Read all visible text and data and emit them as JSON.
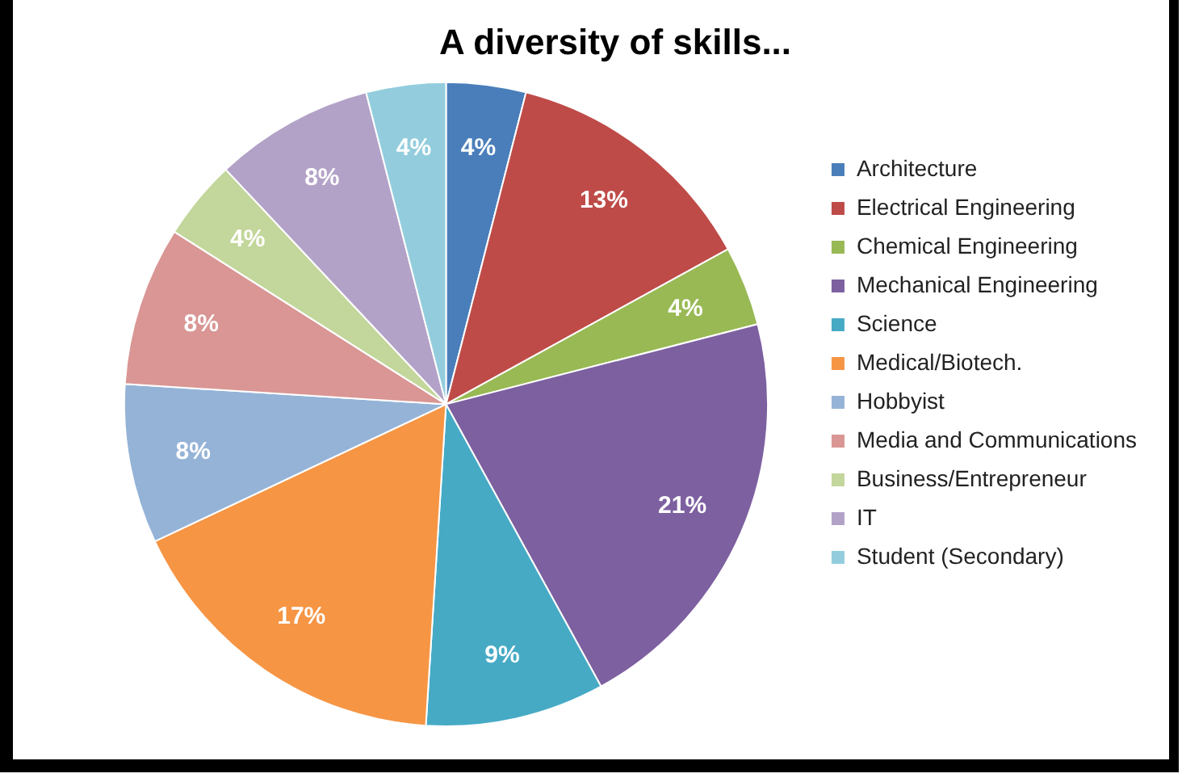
{
  "chart_data": {
    "type": "pie",
    "title": "A diversity of skills...",
    "categories": [
      "Architecture",
      "Electrical Engineering",
      "Chemical Engineering",
      "Mechanical Engineering",
      "Science",
      "Medical/Biotech.",
      "Hobbyist",
      "Media and Communications",
      "Business/Entrepreneur",
      "IT",
      "Student (Secondary)"
    ],
    "values": [
      4,
      13,
      4,
      21,
      9,
      17,
      8,
      8,
      4,
      8,
      4
    ],
    "colors": [
      "#4a7ebb",
      "#be4b48",
      "#98b954",
      "#7d60a0",
      "#46aac5",
      "#f69544",
      "#95b3d7",
      "#d99694",
      "#c3d69b",
      "#b3a2c7",
      "#93cddd"
    ],
    "value_labels": [
      "4%",
      "13%",
      "4%",
      "21%",
      "9%",
      "17%",
      "8%",
      "8%",
      "4%",
      "8%",
      "4%"
    ],
    "legend": "right"
  }
}
